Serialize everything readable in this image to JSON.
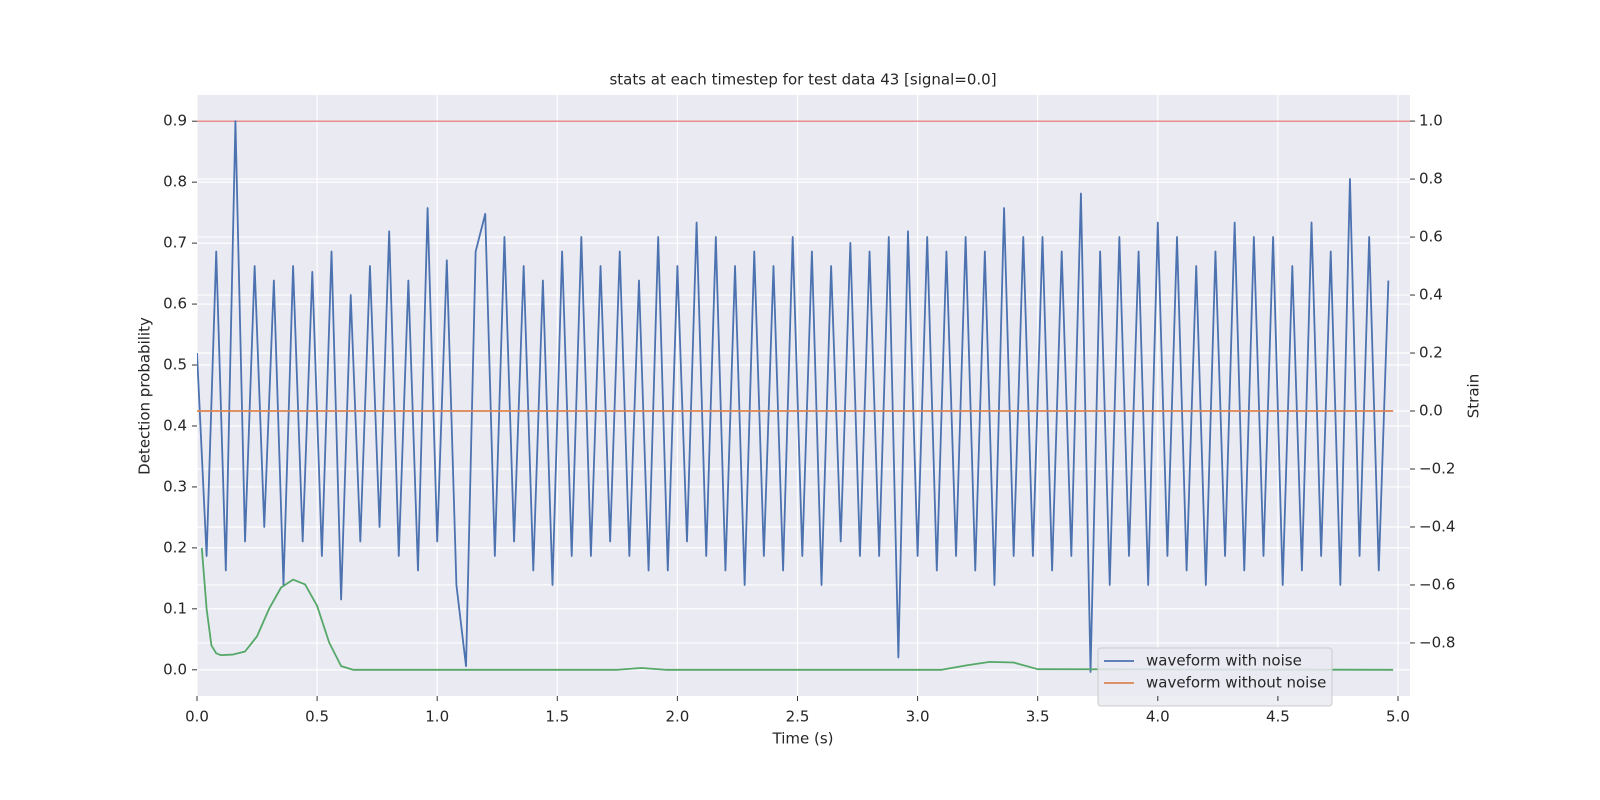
{
  "chart_data": {
    "type": "line",
    "title": "stats at each timestep for test data 43 [signal=0.0]",
    "xlabel": "Time (s)",
    "ylabel": "Detection probability",
    "y2label": "Strain",
    "xlim": [
      0,
      5.05
    ],
    "ylim": [
      -0.043,
      0.943
    ],
    "y2lim": [
      -0.983,
      1.09
    ],
    "xticks": [
      {
        "value": 0,
        "label": "0.0"
      },
      {
        "value": 0.5,
        "label": "0.5"
      },
      {
        "value": 1,
        "label": "1.0"
      },
      {
        "value": 1.5,
        "label": "1.5"
      },
      {
        "value": 2,
        "label": "2.0"
      },
      {
        "value": 2.5,
        "label": "2.5"
      },
      {
        "value": 3,
        "label": "3.0"
      },
      {
        "value": 3.5,
        "label": "3.5"
      },
      {
        "value": 4,
        "label": "4.0"
      },
      {
        "value": 4.5,
        "label": "4.5"
      },
      {
        "value": 5,
        "label": "5.0"
      }
    ],
    "yticks": [
      {
        "value": 0,
        "label": "0.0"
      },
      0.1,
      0.2,
      0.3,
      0.4,
      0.5,
      0.6,
      0.7,
      0.8,
      0.9
    ],
    "y2ticks": [
      {
        "value": -0.8,
        "label": "−0.8"
      },
      {
        "value": -0.6,
        "label": "−0.6"
      },
      {
        "value": -0.4,
        "label": "−0.4"
      },
      {
        "value": -0.2,
        "label": "−0.2"
      },
      {
        "value": 0,
        "label": "0.0"
      },
      0.2,
      0.4,
      0.6,
      0.8,
      {
        "value": 1,
        "label": "1.0"
      }
    ],
    "grid": true,
    "legend": "lower right",
    "hlines": [
      {
        "value": 0.9,
        "color": "#e06a6a"
      }
    ],
    "series": [
      {
        "name": "waveform with noise",
        "color": "#4c72b0",
        "axis": "y2",
        "x": [
          0,
          0.04,
          0.08,
          0.12,
          0.16,
          0.2,
          0.24,
          0.28,
          0.32,
          0.36,
          0.4,
          0.44,
          0.48,
          0.52,
          0.56,
          0.6,
          0.64,
          0.68,
          0.72,
          0.76,
          0.8,
          0.84,
          0.88,
          0.92,
          0.96,
          1,
          1.04,
          1.08,
          1.12,
          1.16,
          1.2,
          1.24,
          1.28,
          1.32,
          1.36,
          1.4,
          1.44,
          1.48,
          1.52,
          1.56,
          1.6,
          1.64,
          1.68,
          1.72,
          1.76,
          1.8,
          1.84,
          1.88,
          1.92,
          1.96,
          2,
          2.04,
          2.08,
          2.12,
          2.16,
          2.2,
          2.24,
          2.28,
          2.32,
          2.36,
          2.4,
          2.44,
          2.48,
          2.52,
          2.56,
          2.6,
          2.64,
          2.68,
          2.72,
          2.76,
          2.8,
          2.84,
          2.88,
          2.92,
          2.96,
          3,
          3.04,
          3.08,
          3.12,
          3.16,
          3.2,
          3.24,
          3.28,
          3.32,
          3.36,
          3.4,
          3.44,
          3.48,
          3.52,
          3.56,
          3.6,
          3.64,
          3.68,
          3.72,
          3.76,
          3.8,
          3.84,
          3.88,
          3.92,
          3.96,
          4,
          4.04,
          4.08,
          4.12,
          4.16,
          4.2,
          4.24,
          4.28,
          4.32,
          4.36,
          4.4,
          4.44,
          4.48,
          4.52,
          4.56,
          4.6,
          4.64,
          4.68,
          4.72,
          4.76,
          4.8,
          4.84,
          4.88,
          4.92,
          4.96
        ],
        "values": [
          0.2,
          -0.5,
          0.55,
          -0.55,
          1.0,
          -0.45,
          0.5,
          -0.4,
          0.45,
          -0.6,
          0.5,
          -0.45,
          0.48,
          -0.5,
          0.55,
          -0.65,
          0.4,
          -0.45,
          0.5,
          -0.4,
          0.62,
          -0.5,
          0.45,
          -0.55,
          0.7,
          -0.45,
          0.52,
          -0.6,
          -0.88,
          0.55,
          0.68,
          -0.5,
          0.6,
          -0.45,
          0.5,
          -0.55,
          0.45,
          -0.6,
          0.55,
          -0.5,
          0.6,
          -0.5,
          0.5,
          -0.45,
          0.55,
          -0.5,
          0.45,
          -0.55,
          0.6,
          -0.55,
          0.5,
          -0.45,
          0.65,
          -0.5,
          0.6,
          -0.55,
          0.5,
          -0.6,
          0.55,
          -0.5,
          0.5,
          -0.55,
          0.6,
          -0.5,
          0.55,
          -0.6,
          0.5,
          -0.45,
          0.58,
          -0.5,
          0.55,
          -0.5,
          0.6,
          -0.85,
          0.62,
          -0.5,
          0.6,
          -0.55,
          0.55,
          -0.5,
          0.6,
          -0.55,
          0.55,
          -0.6,
          0.7,
          -0.5,
          0.6,
          -0.5,
          0.6,
          -0.55,
          0.55,
          -0.5,
          0.75,
          -0.9,
          0.55,
          -0.6,
          0.6,
          -0.5,
          0.55,
          -0.6,
          0.65,
          -0.5,
          0.6,
          -0.55,
          0.5,
          -0.6,
          0.55,
          -0.5,
          0.65,
          -0.55,
          0.6,
          -0.5,
          0.6,
          -0.6,
          0.5,
          -0.55,
          0.65,
          -0.5,
          0.55,
          -0.6,
          0.8,
          -0.5,
          0.6,
          -0.55,
          0.45
        ]
      },
      {
        "name": "waveform without noise",
        "color": "#dd8452",
        "axis": "y2",
        "x": [
          0,
          4.98
        ],
        "values": [
          0,
          0
        ]
      },
      {
        "color": "#55a868",
        "axis": "y",
        "x": [
          0.02,
          0.04,
          0.06,
          0.08,
          0.1,
          0.15,
          0.2,
          0.25,
          0.3,
          0.35,
          0.4,
          0.45,
          0.5,
          0.55,
          0.6,
          0.65,
          1.75,
          1.85,
          1.95,
          3.1,
          3.2,
          3.3,
          3.4,
          3.5,
          4.98
        ],
        "values": [
          0.2,
          0.1,
          0.04,
          0.027,
          0.024,
          0.025,
          0.03,
          0.055,
          0.1,
          0.135,
          0.148,
          0.14,
          0.105,
          0.045,
          0.006,
          0.0,
          0.0,
          0.003,
          0.0,
          0.0,
          0.007,
          0.013,
          0.012,
          0.001,
          0.0
        ]
      }
    ]
  }
}
